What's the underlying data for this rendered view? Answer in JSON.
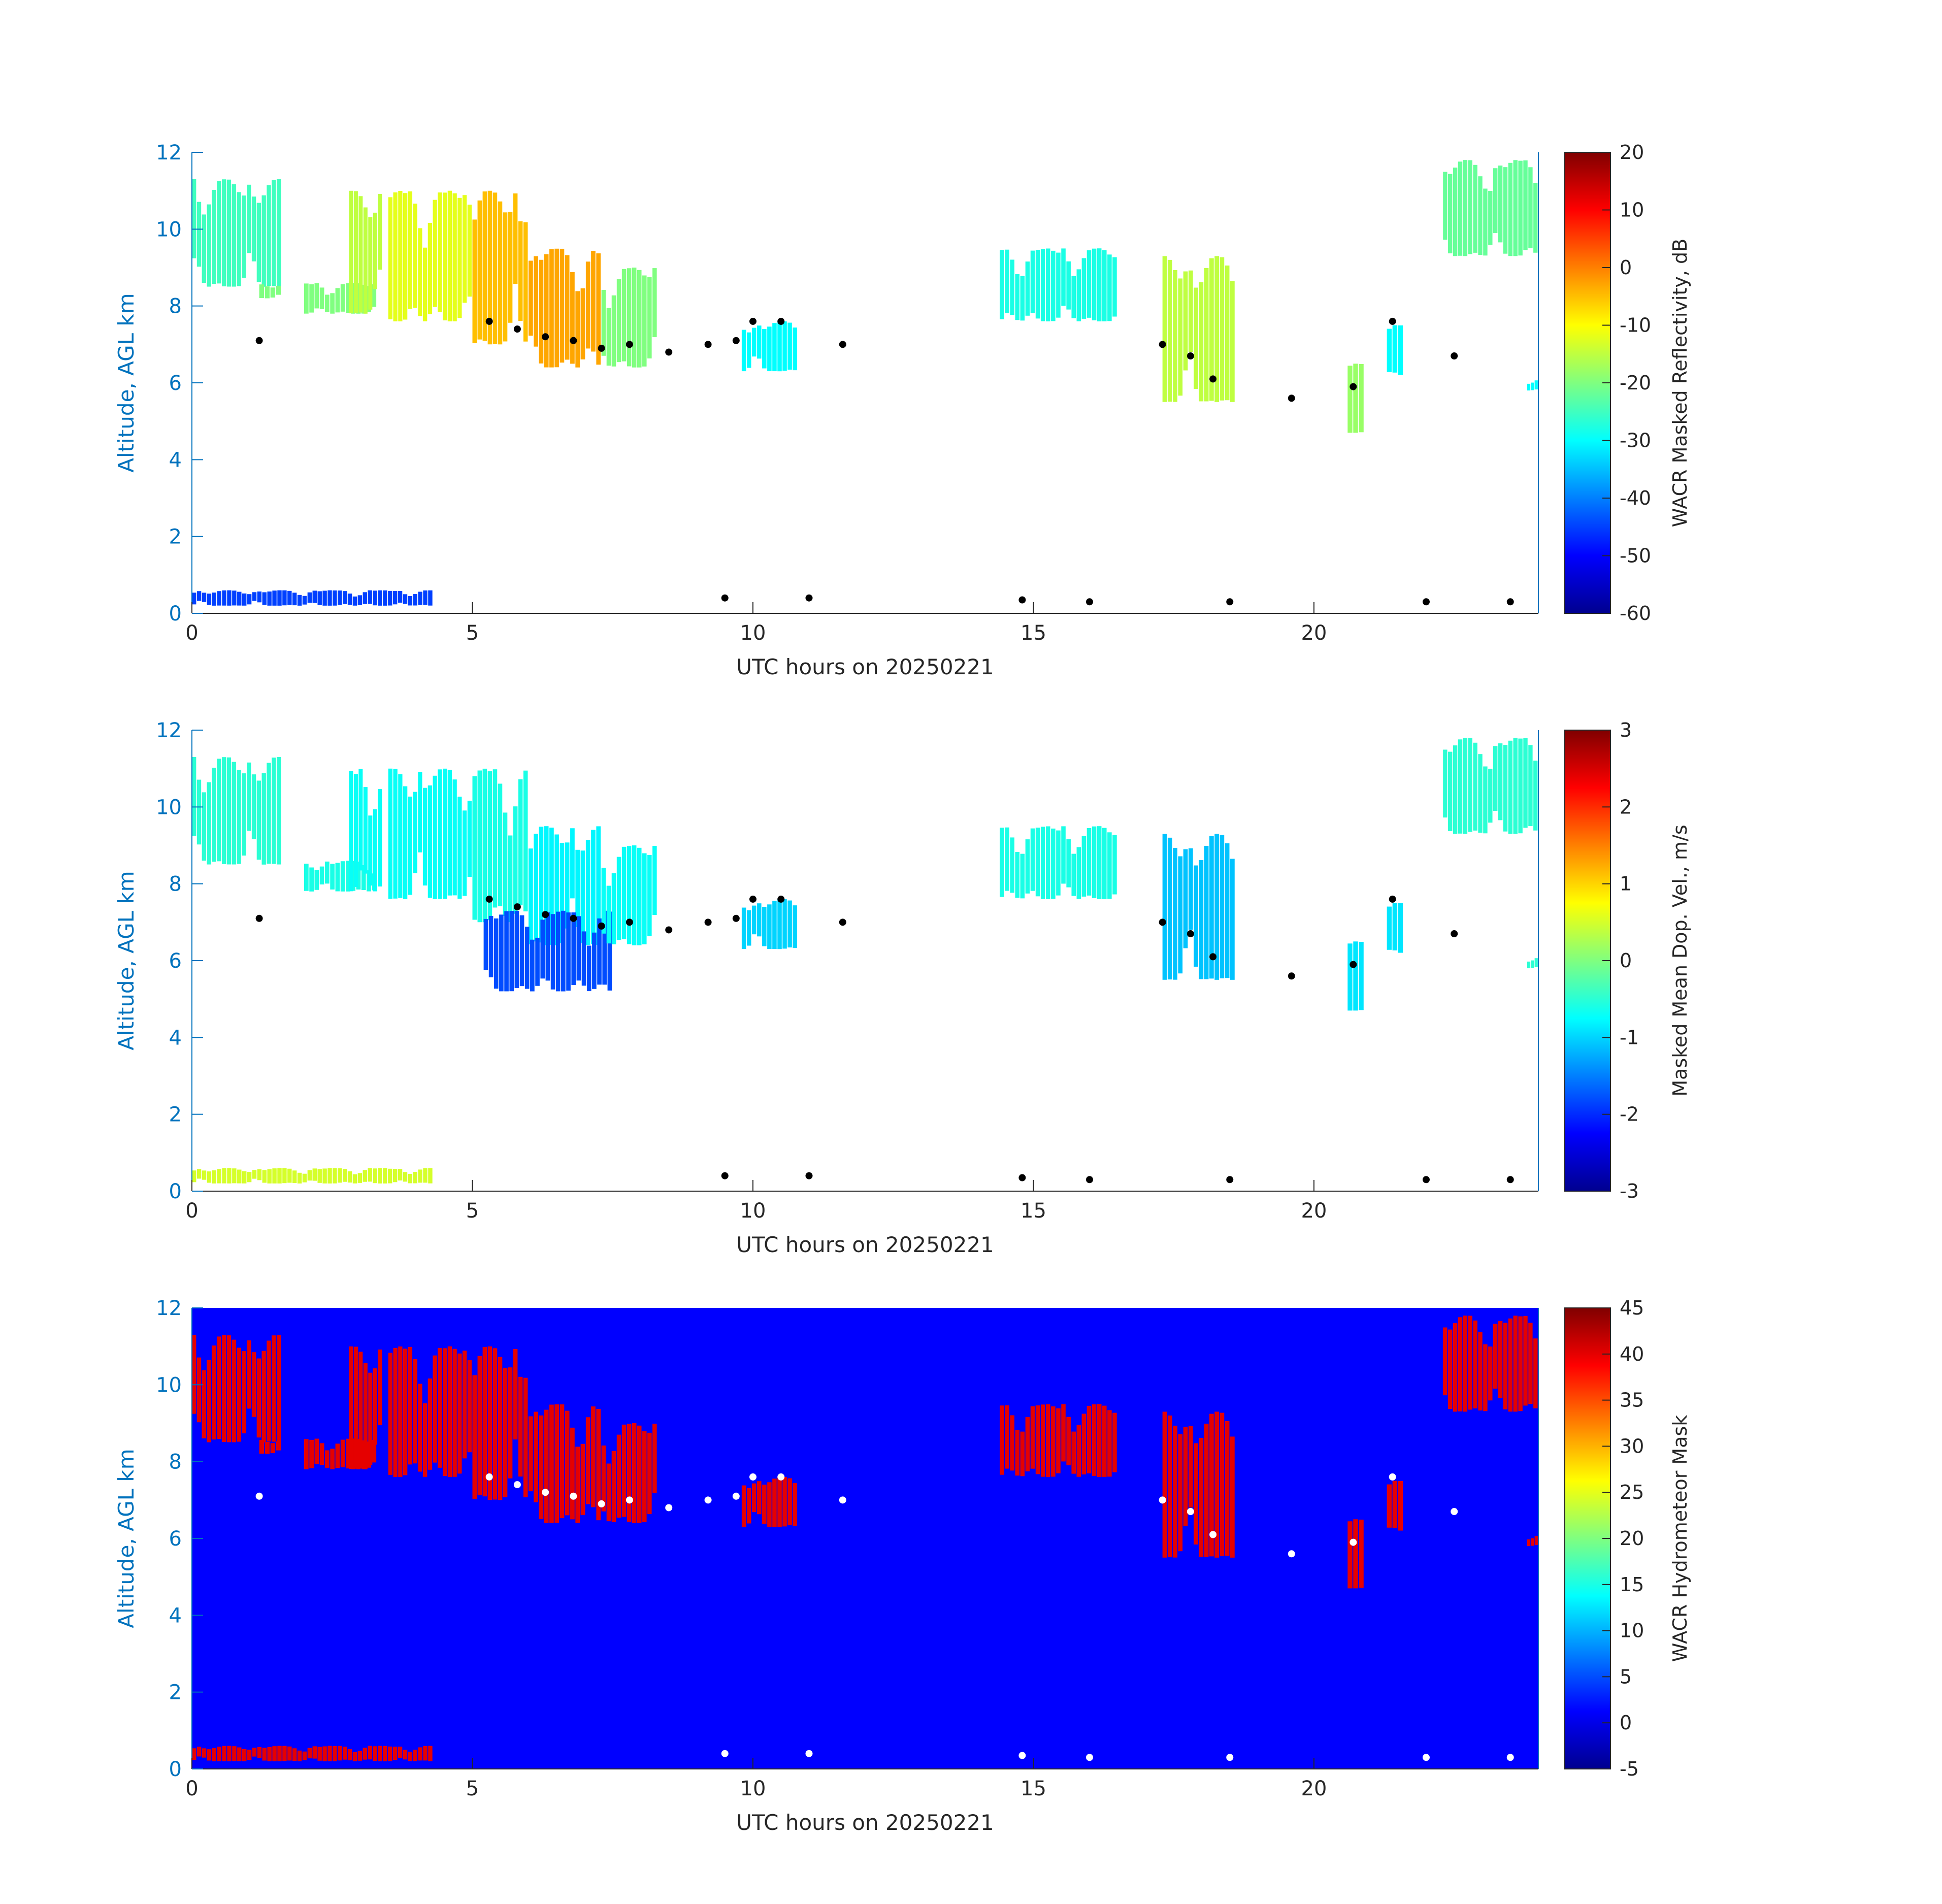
{
  "chart_data": [
    {
      "type": "heatmap",
      "xlabel": "UTC hours on 20250221",
      "ylabel": "Altitude, AGL km",
      "xlim": [
        0,
        24
      ],
      "ylim": [
        0,
        12
      ],
      "xticks": [
        "0",
        "5",
        "10",
        "15",
        "20"
      ],
      "yticks": [
        "0",
        "2",
        "4",
        "6",
        "8",
        "10",
        "12"
      ],
      "colorbar": {
        "label": "WACR Masked Reflectivity, dB",
        "range": [
          -60,
          20
        ],
        "ticks": [
          "20",
          "10",
          "0",
          "-10",
          "-20",
          "-30",
          "-40",
          "-50",
          "-60"
        ],
        "colormap": "jet"
      },
      "background": "#ffffff",
      "base_marker_color": "#000000",
      "echo_regions": [
        {
          "x": [
            0.0,
            1.6
          ],
          "y": [
            8.5,
            11.3
          ],
          "value": -25
        },
        {
          "x": [
            1.2,
            1.6
          ],
          "y": [
            8.2,
            8.6
          ],
          "value": -20
        },
        {
          "x": [
            2.0,
            3.3
          ],
          "y": [
            7.8,
            8.6
          ],
          "value": -20
        },
        {
          "x": [
            2.8,
            3.4
          ],
          "y": [
            7.8,
            11.0
          ],
          "value": -15
        },
        {
          "x": [
            3.5,
            5.0
          ],
          "y": [
            7.6,
            11.0
          ],
          "value": -12
        },
        {
          "x": [
            5.0,
            6.0
          ],
          "y": [
            7.0,
            11.0
          ],
          "value": -5
        },
        {
          "x": [
            6.0,
            7.3
          ],
          "y": [
            6.4,
            9.5
          ],
          "value": -3
        },
        {
          "x": [
            7.3,
            8.3
          ],
          "y": [
            6.4,
            9.0
          ],
          "value": -20
        },
        {
          "x": [
            9.8,
            10.8
          ],
          "y": [
            6.3,
            7.6
          ],
          "value": -30
        },
        {
          "x": [
            14.4,
            16.5
          ],
          "y": [
            7.6,
            9.5
          ],
          "value": -28
        },
        {
          "x": [
            17.3,
            18.6
          ],
          "y": [
            5.5,
            9.3
          ],
          "value": -15
        },
        {
          "x": [
            20.6,
            20.9
          ],
          "y": [
            4.7,
            6.5
          ],
          "value": -18
        },
        {
          "x": [
            21.3,
            21.6
          ],
          "y": [
            6.2,
            7.5
          ],
          "value": -30
        },
        {
          "x": [
            22.3,
            24.0
          ],
          "y": [
            9.3,
            11.8
          ],
          "value": -22
        },
        {
          "x": [
            23.8,
            24.0
          ],
          "y": [
            5.8,
            6.1
          ],
          "value": -30
        },
        {
          "x": [
            0.0,
            4.3
          ],
          "y": [
            0.2,
            0.6
          ],
          "value": -45
        }
      ],
      "cloud_base_points": [
        {
          "x": 1.2,
          "y": 7.1
        },
        {
          "x": 5.3,
          "y": 7.6
        },
        {
          "x": 5.8,
          "y": 7.4
        },
        {
          "x": 6.3,
          "y": 7.2
        },
        {
          "x": 6.8,
          "y": 7.1
        },
        {
          "x": 7.3,
          "y": 6.9
        },
        {
          "x": 7.8,
          "y": 7.0
        },
        {
          "x": 8.5,
          "y": 6.8
        },
        {
          "x": 9.2,
          "y": 7.0
        },
        {
          "x": 9.7,
          "y": 7.1
        },
        {
          "x": 10.0,
          "y": 7.6
        },
        {
          "x": 10.5,
          "y": 7.6
        },
        {
          "x": 11.6,
          "y": 7.0
        },
        {
          "x": 17.3,
          "y": 7.0
        },
        {
          "x": 17.8,
          "y": 6.7
        },
        {
          "x": 18.2,
          "y": 6.1
        },
        {
          "x": 19.6,
          "y": 5.6
        },
        {
          "x": 20.7,
          "y": 5.9
        },
        {
          "x": 21.4,
          "y": 7.6
        },
        {
          "x": 22.5,
          "y": 6.7
        },
        {
          "x": 9.5,
          "y": 0.4
        },
        {
          "x": 11.0,
          "y": 0.4
        },
        {
          "x": 14.8,
          "y": 0.35
        },
        {
          "x": 16.0,
          "y": 0.3
        },
        {
          "x": 18.5,
          "y": 0.3
        },
        {
          "x": 22.0,
          "y": 0.3
        },
        {
          "x": 23.5,
          "y": 0.3
        }
      ]
    },
    {
      "type": "heatmap",
      "xlabel": "UTC hours on 20250221",
      "ylabel": "Altitude, AGL km",
      "xlim": [
        0,
        24
      ],
      "ylim": [
        0,
        12
      ],
      "xticks": [
        "0",
        "5",
        "10",
        "15",
        "20"
      ],
      "yticks": [
        "0",
        "2",
        "4",
        "6",
        "8",
        "10",
        "12"
      ],
      "colorbar": {
        "label": "Masked Mean Dop. Vel., m/s",
        "range": [
          -3,
          3
        ],
        "ticks": [
          "3",
          "2",
          "1",
          "0",
          "-1",
          "-2",
          "-3"
        ],
        "colormap": "jet"
      },
      "background": "#ffffff",
      "base_marker_color": "#000000",
      "echo_regions": [
        {
          "x": [
            0.0,
            1.6
          ],
          "y": [
            8.5,
            11.3
          ],
          "value": -0.5
        },
        {
          "x": [
            2.0,
            3.3
          ],
          "y": [
            7.8,
            8.6
          ],
          "value": -0.6
        },
        {
          "x": [
            2.8,
            3.4
          ],
          "y": [
            7.8,
            11.0
          ],
          "value": -0.7
        },
        {
          "x": [
            3.5,
            5.0
          ],
          "y": [
            7.6,
            11.0
          ],
          "value": -0.7
        },
        {
          "x": [
            5.0,
            6.0
          ],
          "y": [
            7.0,
            11.0
          ],
          "value": -0.6
        },
        {
          "x": [
            6.0,
            7.3
          ],
          "y": [
            6.4,
            9.5
          ],
          "value": -0.8
        },
        {
          "x": [
            5.2,
            7.5
          ],
          "y": [
            5.2,
            7.3
          ],
          "value": -1.8
        },
        {
          "x": [
            7.3,
            8.3
          ],
          "y": [
            6.4,
            9.0
          ],
          "value": -0.7
        },
        {
          "x": [
            9.8,
            10.8
          ],
          "y": [
            6.3,
            7.6
          ],
          "value": -1.0
        },
        {
          "x": [
            14.4,
            16.5
          ],
          "y": [
            7.6,
            9.5
          ],
          "value": -0.6
        },
        {
          "x": [
            17.3,
            18.6
          ],
          "y": [
            5.5,
            9.3
          ],
          "value": -1.1
        },
        {
          "x": [
            20.6,
            20.9
          ],
          "y": [
            4.7,
            6.5
          ],
          "value": -0.9
        },
        {
          "x": [
            21.3,
            21.6
          ],
          "y": [
            6.2,
            7.5
          ],
          "value": -0.9
        },
        {
          "x": [
            22.3,
            24.0
          ],
          "y": [
            9.3,
            11.8
          ],
          "value": -0.5
        },
        {
          "x": [
            23.8,
            24.0
          ],
          "y": [
            5.8,
            6.1
          ],
          "value": -0.5
        },
        {
          "x": [
            0.0,
            4.3
          ],
          "y": [
            0.2,
            0.6
          ],
          "value": 0.5
        }
      ],
      "cloud_base_points": [
        {
          "x": 1.2,
          "y": 7.1
        },
        {
          "x": 5.3,
          "y": 7.6
        },
        {
          "x": 5.8,
          "y": 7.4
        },
        {
          "x": 6.3,
          "y": 7.2
        },
        {
          "x": 6.8,
          "y": 7.1
        },
        {
          "x": 7.3,
          "y": 6.9
        },
        {
          "x": 7.8,
          "y": 7.0
        },
        {
          "x": 8.5,
          "y": 6.8
        },
        {
          "x": 9.2,
          "y": 7.0
        },
        {
          "x": 9.7,
          "y": 7.1
        },
        {
          "x": 10.0,
          "y": 7.6
        },
        {
          "x": 10.5,
          "y": 7.6
        },
        {
          "x": 11.6,
          "y": 7.0
        },
        {
          "x": 17.3,
          "y": 7.0
        },
        {
          "x": 17.8,
          "y": 6.7
        },
        {
          "x": 18.2,
          "y": 6.1
        },
        {
          "x": 19.6,
          "y": 5.6
        },
        {
          "x": 20.7,
          "y": 5.9
        },
        {
          "x": 21.4,
          "y": 7.6
        },
        {
          "x": 22.5,
          "y": 6.7
        },
        {
          "x": 9.5,
          "y": 0.4
        },
        {
          "x": 11.0,
          "y": 0.4
        },
        {
          "x": 14.8,
          "y": 0.35
        },
        {
          "x": 16.0,
          "y": 0.3
        },
        {
          "x": 18.5,
          "y": 0.3
        },
        {
          "x": 22.0,
          "y": 0.3
        },
        {
          "x": 23.5,
          "y": 0.3
        }
      ]
    },
    {
      "type": "heatmap",
      "xlabel": "UTC hours on 20250221",
      "ylabel": "Altitude, AGL km",
      "xlim": [
        0,
        24
      ],
      "ylim": [
        0,
        12
      ],
      "xticks": [
        "0",
        "5",
        "10",
        "15",
        "20"
      ],
      "yticks": [
        "0",
        "2",
        "4",
        "6",
        "8",
        "10",
        "12"
      ],
      "colorbar": {
        "label": "WACR Hydrometeor Mask",
        "range": [
          -5,
          45
        ],
        "ticks": [
          "45",
          "40",
          "35",
          "30",
          "25",
          "20",
          "15",
          "10",
          "5",
          "0",
          "-5"
        ],
        "colormap": "jet"
      },
      "background": "#0000ff",
      "base_marker_color": "#ffffff",
      "echo_regions": [
        {
          "x": [
            0.0,
            1.6
          ],
          "y": [
            8.5,
            11.3
          ],
          "value": 40
        },
        {
          "x": [
            1.2,
            1.6
          ],
          "y": [
            8.2,
            8.6
          ],
          "value": 40
        },
        {
          "x": [
            2.0,
            3.3
          ],
          "y": [
            7.8,
            8.6
          ],
          "value": 40
        },
        {
          "x": [
            2.8,
            3.4
          ],
          "y": [
            7.8,
            11.0
          ],
          "value": 40
        },
        {
          "x": [
            3.5,
            5.0
          ],
          "y": [
            7.6,
            11.0
          ],
          "value": 40
        },
        {
          "x": [
            5.0,
            6.0
          ],
          "y": [
            7.0,
            11.0
          ],
          "value": 40
        },
        {
          "x": [
            6.0,
            7.3
          ],
          "y": [
            6.4,
            9.5
          ],
          "value": 40
        },
        {
          "x": [
            7.3,
            8.3
          ],
          "y": [
            6.4,
            9.0
          ],
          "value": 40
        },
        {
          "x": [
            9.8,
            10.8
          ],
          "y": [
            6.3,
            7.6
          ],
          "value": 40
        },
        {
          "x": [
            14.4,
            16.5
          ],
          "y": [
            7.6,
            9.5
          ],
          "value": 40
        },
        {
          "x": [
            17.3,
            18.6
          ],
          "y": [
            5.5,
            9.3
          ],
          "value": 40
        },
        {
          "x": [
            20.6,
            20.9
          ],
          "y": [
            4.7,
            6.5
          ],
          "value": 40
        },
        {
          "x": [
            21.3,
            21.6
          ],
          "y": [
            6.2,
            7.5
          ],
          "value": 40
        },
        {
          "x": [
            22.3,
            24.0
          ],
          "y": [
            9.3,
            11.8
          ],
          "value": 40
        },
        {
          "x": [
            23.8,
            24.0
          ],
          "y": [
            5.8,
            6.1
          ],
          "value": 40
        },
        {
          "x": [
            0.0,
            4.3
          ],
          "y": [
            0.2,
            0.6
          ],
          "value": 40
        }
      ],
      "cloud_base_points": [
        {
          "x": 1.2,
          "y": 7.1
        },
        {
          "x": 5.3,
          "y": 7.6
        },
        {
          "x": 5.8,
          "y": 7.4
        },
        {
          "x": 6.3,
          "y": 7.2
        },
        {
          "x": 6.8,
          "y": 7.1
        },
        {
          "x": 7.3,
          "y": 6.9
        },
        {
          "x": 7.8,
          "y": 7.0
        },
        {
          "x": 8.5,
          "y": 6.8
        },
        {
          "x": 9.2,
          "y": 7.0
        },
        {
          "x": 9.7,
          "y": 7.1
        },
        {
          "x": 10.0,
          "y": 7.6
        },
        {
          "x": 10.5,
          "y": 7.6
        },
        {
          "x": 11.6,
          "y": 7.0
        },
        {
          "x": 17.3,
          "y": 7.0
        },
        {
          "x": 17.8,
          "y": 6.7
        },
        {
          "x": 18.2,
          "y": 6.1
        },
        {
          "x": 19.6,
          "y": 5.6
        },
        {
          "x": 20.7,
          "y": 5.9
        },
        {
          "x": 21.4,
          "y": 7.6
        },
        {
          "x": 22.5,
          "y": 6.7
        },
        {
          "x": 9.5,
          "y": 0.4
        },
        {
          "x": 11.0,
          "y": 0.4
        },
        {
          "x": 14.8,
          "y": 0.35
        },
        {
          "x": 16.0,
          "y": 0.3
        },
        {
          "x": 18.5,
          "y": 0.3
        },
        {
          "x": 22.0,
          "y": 0.3
        },
        {
          "x": 23.5,
          "y": 0.3
        }
      ]
    }
  ]
}
